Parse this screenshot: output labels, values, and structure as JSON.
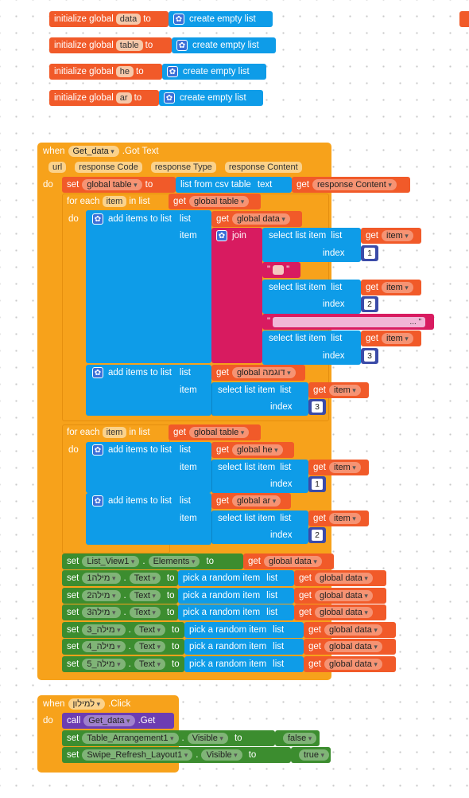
{
  "globals": [
    {
      "prefix": "initialize global",
      "name": "data",
      "to": "to",
      "value": "create empty list"
    },
    {
      "prefix": "initialize global",
      "name": "table",
      "to": "to",
      "value": "create empty list"
    },
    {
      "prefix": "initialize global",
      "name": "he",
      "to": "to",
      "value": "create empty list"
    },
    {
      "prefix": "initialize global",
      "name": "ar",
      "to": "to",
      "value": "create empty list"
    }
  ],
  "event1": {
    "when": "when",
    "component": "Get_data",
    "event": ".Got Text",
    "params": [
      "url",
      "response Code",
      "response Type",
      "response Content"
    ],
    "do": "do",
    "set1": {
      "set": "set",
      "var": "global table",
      "to": "to",
      "fn": "list from csv table",
      "text": "text",
      "get": "get",
      "arg": "response Content"
    },
    "foreach1": {
      "label": "for each",
      "var": "item",
      "in": "in list",
      "get": "get",
      "list": "global table",
      "do": "do",
      "add1": {
        "label": "add items to list",
        "list": "list",
        "get": "get",
        "target": "global data",
        "item": "item",
        "join": "join",
        "sel": "select list item",
        "selList": "list",
        "selGet": "get",
        "selVar": "item",
        "index": "index",
        "idx1": "1",
        "idx2": "2",
        "idx3": "3",
        "str1": "\"",
        "str2end": "... \""
      },
      "add2": {
        "label": "add items to list",
        "list": "list",
        "get": "get",
        "target": "global דוגמה",
        "item": "item",
        "sel": "select list item",
        "selList": "list",
        "selGet": "get",
        "selVar": "item",
        "index": "index",
        "idx": "3"
      }
    },
    "foreach2": {
      "label": "for each",
      "var": "item",
      "in": "in list",
      "get": "get",
      "list": "global table",
      "do": "do",
      "add1": {
        "label": "add items to list",
        "list": "list",
        "get": "get",
        "target": "global he",
        "item": "item",
        "sel": "select list item",
        "selList": "list",
        "selGet": "get",
        "selVar": "item",
        "index": "index",
        "idx": "1"
      },
      "add2": {
        "label": "add items to list",
        "list": "list",
        "get": "get",
        "target": "global ar",
        "item": "item",
        "sel": "select list item",
        "selList": "list",
        "selGet": "get",
        "selVar": "item",
        "index": "index",
        "idx": "2"
      }
    },
    "setList": {
      "set": "set",
      "comp": "List_View1",
      "prop": "Elements",
      "to": "to",
      "get": "get",
      "val": "global data"
    },
    "setTexts": [
      {
        "set": "set",
        "comp": "מילה1",
        "prop": "Text",
        "to": "to",
        "fn": "pick a random item",
        "list": "list",
        "get": "get",
        "val": "global data"
      },
      {
        "set": "set",
        "comp": "מילה2",
        "prop": "Text",
        "to": "to",
        "fn": "pick a random item",
        "list": "list",
        "get": "get",
        "val": "global data"
      },
      {
        "set": "set",
        "comp": "מילה3",
        "prop": "Text",
        "to": "to",
        "fn": "pick a random item",
        "list": "list",
        "get": "get",
        "val": "global data"
      },
      {
        "set": "set",
        "comp": "מילה_3",
        "prop": "Text",
        "to": "to",
        "fn": "pick a random item",
        "list": "list",
        "get": "get",
        "val": "global data"
      },
      {
        "set": "set",
        "comp": "מילה_4",
        "prop": "Text",
        "to": "to",
        "fn": "pick a random item",
        "list": "list",
        "get": "get",
        "val": "global data"
      },
      {
        "set": "set",
        "comp": "מילה_5",
        "prop": "Text",
        "to": "to",
        "fn": "pick a random item",
        "list": "list",
        "get": "get",
        "val": "global data"
      }
    ]
  },
  "event2": {
    "when": "when",
    "component": "למילון",
    "event": ".Click",
    "do": "do",
    "call": {
      "call": "call",
      "comp": "Get_data",
      "method": ".Get"
    },
    "sets": [
      {
        "set": "set",
        "comp": "Table_Arrangement1",
        "prop": "Visible",
        "to": "to",
        "val": "false"
      },
      {
        "set": "set",
        "comp": "Swipe_Refresh_Layout1",
        "prop": "Visible",
        "to": "to",
        "val": "true"
      }
    ]
  },
  "colors": {
    "global": "#f15a29",
    "list": "#0e9ce8",
    "event": "#f7a21b",
    "component": "#3c8d2f",
    "text": "#d81b60",
    "math": "#3b4ba8",
    "procedure": "#6c3db2"
  }
}
